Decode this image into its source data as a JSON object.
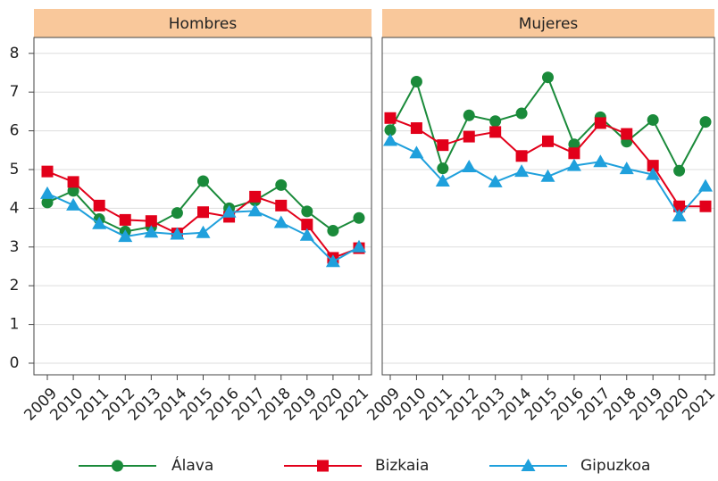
{
  "chart_data": {
    "type": "line",
    "categories": [
      "2009",
      "2010",
      "2011",
      "2012",
      "2013",
      "2014",
      "2015",
      "2016",
      "2017",
      "2018",
      "2019",
      "2020",
      "2021"
    ],
    "ylim": [
      -0.3,
      8.41
    ],
    "yticks": [
      0,
      1,
      2,
      3,
      4,
      5,
      6,
      7,
      8
    ],
    "grid": true,
    "series": [
      {
        "name": "Álava",
        "color": "#1a8a3a",
        "marker": "circle"
      },
      {
        "name": "Bizkaia",
        "color": "#e2001a",
        "marker": "square"
      },
      {
        "name": "Gipuzkoa",
        "color": "#1fa0dc",
        "marker": "triangle"
      }
    ],
    "panels": [
      {
        "title": "Hombres",
        "series": [
          {
            "values": [
              4.15,
              4.45,
              3.72,
              3.4,
              3.52,
              3.88,
              4.7,
              4.0,
              4.2,
              4.6,
              3.92,
              3.42,
              3.75
            ]
          },
          {
            "values": [
              4.95,
              4.68,
              4.07,
              3.7,
              3.67,
              3.35,
              3.9,
              3.78,
              4.3,
              4.07,
              3.58,
              2.72,
              2.97
            ]
          },
          {
            "values": [
              4.38,
              4.08,
              3.6,
              3.27,
              3.38,
              3.33,
              3.37,
              3.9,
              3.93,
              3.63,
              3.3,
              2.62,
              3.0
            ]
          }
        ]
      },
      {
        "title": "Mujeres",
        "series": [
          {
            "values": [
              6.02,
              7.27,
              5.03,
              6.4,
              6.25,
              6.45,
              7.38,
              5.65,
              6.35,
              5.72,
              6.28,
              4.97,
              6.23
            ]
          },
          {
            "values": [
              6.33,
              6.07,
              5.63,
              5.85,
              5.97,
              5.35,
              5.73,
              5.42,
              6.2,
              5.92,
              5.1,
              4.05,
              4.05
            ]
          },
          {
            "values": [
              5.75,
              5.43,
              4.7,
              5.07,
              4.68,
              4.95,
              4.82,
              5.1,
              5.2,
              5.02,
              4.87,
              3.8,
              4.57
            ]
          }
        ]
      }
    ]
  }
}
